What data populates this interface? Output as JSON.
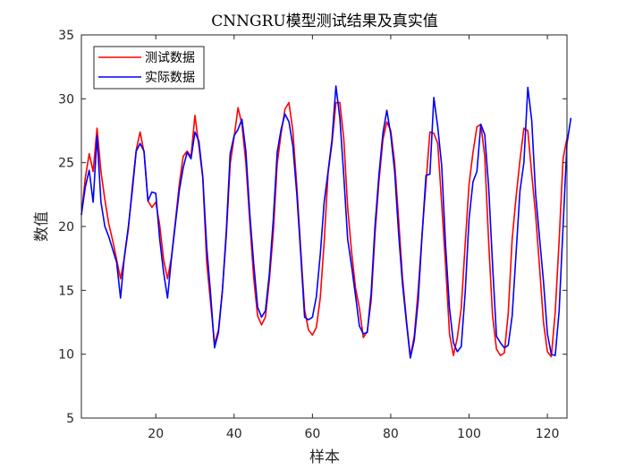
{
  "chart_data": {
    "type": "line",
    "title": "CNNGRU模型测试结果及真实值",
    "xlabel": "样本",
    "ylabel": "数值",
    "xlim": [
      1,
      125
    ],
    "ylim": [
      5,
      35
    ],
    "xticks": [
      20,
      40,
      60,
      80,
      100,
      120
    ],
    "yticks": [
      5,
      10,
      15,
      20,
      25,
      30,
      35
    ],
    "grid": false,
    "legend_position": "top-left",
    "series": [
      {
        "name": "测试数据",
        "color": "#ff0000",
        "values": [
          20.9,
          23.8,
          25.7,
          24.3,
          27.7,
          24.3,
          22.1,
          20.2,
          18.9,
          17.4,
          15.9,
          17.6,
          19.8,
          23.1,
          26.0,
          27.4,
          25.8,
          22.0,
          21.5,
          21.9,
          20.1,
          17.4,
          15.9,
          17.6,
          20.4,
          23.3,
          25.5,
          25.9,
          25.5,
          28.7,
          26.3,
          23.8,
          17.2,
          14.0,
          10.8,
          11.9,
          15.0,
          19.2,
          24.9,
          27.0,
          29.3,
          28.0,
          25.0,
          20.4,
          16.0,
          13.0,
          12.3,
          12.9,
          15.8,
          19.5,
          24.9,
          27.3,
          29.2,
          29.7,
          27.5,
          23.2,
          18.3,
          13.5,
          11.9,
          11.5,
          12.1,
          14.4,
          18.8,
          24.2,
          26.5,
          29.7,
          29.7,
          26.9,
          21.5,
          18.0,
          15.2,
          13.6,
          11.3,
          11.8,
          14.2,
          19.5,
          23.6,
          26.8,
          28.2,
          27.5,
          25.0,
          20.6,
          16.0,
          12.7,
          9.8,
          11.4,
          15.0,
          19.4,
          23.4,
          27.4,
          27.3,
          26.5,
          21.8,
          17.0,
          11.6,
          9.9,
          11.3,
          13.6,
          18.6,
          23.3,
          25.8,
          27.8,
          28.0,
          25.5,
          18.8,
          13.0,
          10.4,
          9.9,
          10.1,
          13.2,
          19.0,
          22.3,
          25.2,
          27.7,
          27.5,
          24.1,
          20.9,
          16.8,
          12.5,
          10.2,
          9.8,
          13.3,
          18.9,
          25.3,
          26.9
        ]
      },
      {
        "name": "实际数据",
        "color": "#0000ff",
        "values": [
          20.9,
          23.1,
          24.4,
          21.9,
          27.1,
          21.9,
          20.0,
          19.2,
          18.2,
          17.2,
          14.4,
          17.7,
          20.0,
          22.8,
          25.9,
          26.5,
          25.9,
          22.0,
          22.7,
          22.6,
          19.0,
          16.4,
          14.4,
          17.5,
          20.2,
          22.8,
          24.6,
          25.8,
          25.3,
          27.4,
          26.7,
          23.9,
          18.4,
          14.7,
          10.5,
          11.7,
          14.9,
          19.6,
          25.7,
          27.1,
          27.6,
          28.4,
          25.9,
          21.0,
          17.1,
          13.7,
          12.9,
          13.4,
          16.3,
          20.5,
          25.8,
          27.6,
          28.8,
          28.2,
          26.3,
          22.6,
          17.9,
          12.9,
          12.7,
          12.9,
          14.5,
          17.8,
          21.9,
          24.3,
          26.8,
          31.0,
          28.5,
          24.0,
          19.0,
          16.9,
          14.6,
          12.2,
          11.6,
          11.7,
          14.8,
          20.1,
          24.1,
          27.3,
          29.1,
          27.2,
          24.3,
          19.5,
          15.5,
          12.5,
          9.7,
          11.1,
          14.2,
          19.3,
          24.0,
          24.1,
          30.1,
          27.8,
          24.8,
          18.5,
          13.6,
          10.9,
          10.2,
          10.6,
          14.8,
          20.6,
          23.5,
          24.3,
          28.0,
          27.2,
          23.1,
          17.0,
          11.4,
          10.9,
          10.5,
          10.7,
          13.0,
          17.9,
          22.8,
          25.0,
          30.9,
          28.3,
          22.5,
          19.1,
          15.7,
          11.6,
          10.0,
          9.9,
          13.4,
          20.0,
          26.5,
          28.5
        ]
      }
    ]
  }
}
